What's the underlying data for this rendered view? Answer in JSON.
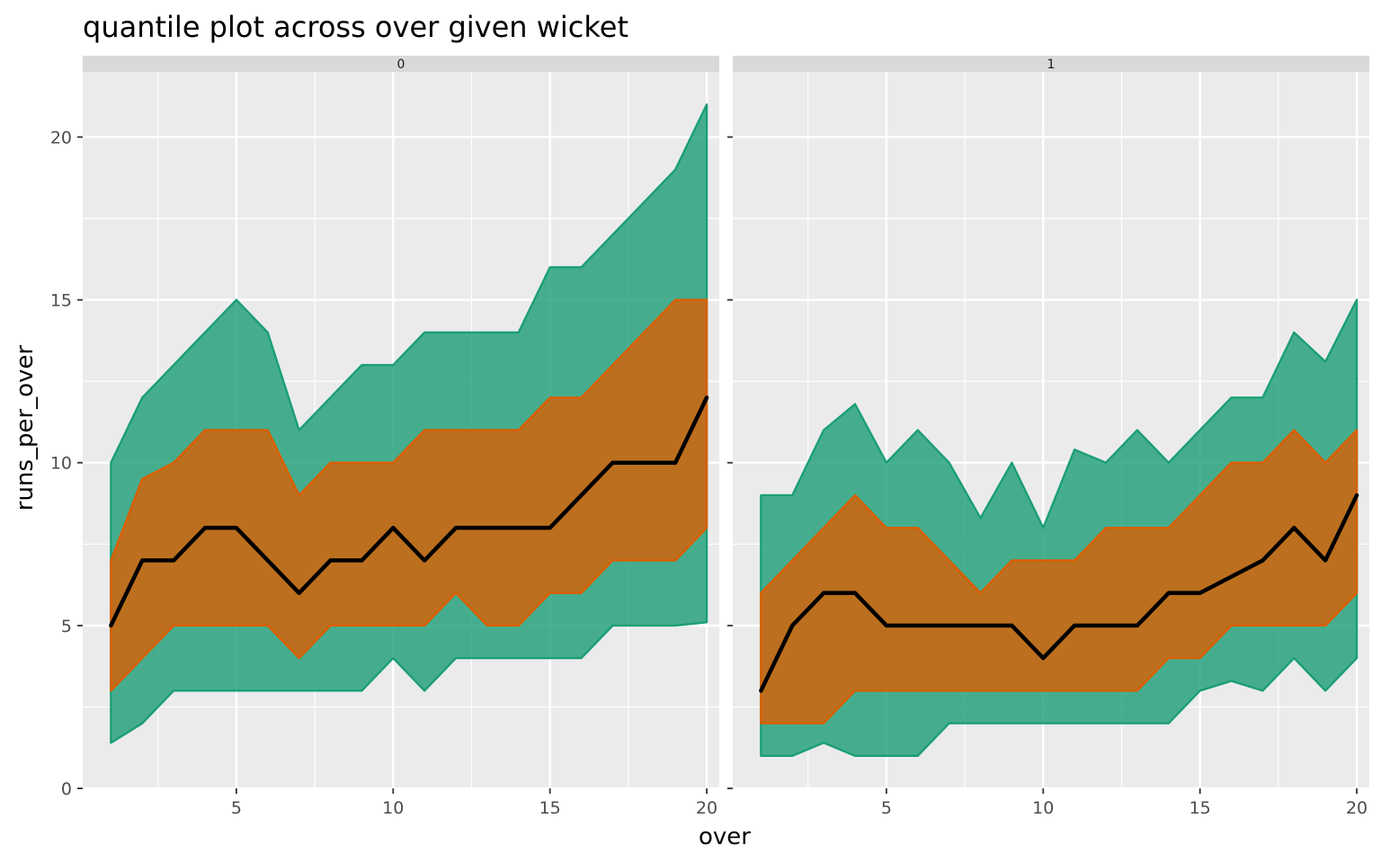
{
  "chart_data": {
    "type": "area",
    "title": "quantile plot across over given wicket",
    "xlabel": "over",
    "ylabel": "runs_per_over",
    "xlim": [
      0.1,
      20.4
    ],
    "ylim": [
      0,
      22
    ],
    "x_ticks": [
      5,
      10,
      15,
      20
    ],
    "y_ticks": [
      0,
      5,
      10,
      15,
      20
    ],
    "grid": true,
    "colors": {
      "outer_band": "#1b9e77",
      "inner_band": "#d95f02",
      "median_line": "#000000",
      "panel_bg": "#ebebeb",
      "strip_bg": "#d9d9d9"
    },
    "facets": [
      {
        "label": "0",
        "x": [
          1,
          2,
          3,
          4,
          5,
          6,
          7,
          8,
          9,
          10,
          11,
          12,
          13,
          14,
          15,
          16,
          17,
          18,
          19,
          20
        ],
        "series": [
          {
            "role": "outer_lower",
            "values": [
              1.4,
              2,
              3,
              3,
              3,
              3,
              3,
              3,
              3,
              4,
              3,
              4,
              4,
              4,
              4,
              4,
              5,
              5,
              5,
              5.1
            ]
          },
          {
            "role": "outer_upper",
            "values": [
              10,
              12,
              13,
              14,
              15,
              14,
              11,
              12,
              13,
              13,
              14,
              14,
              14,
              14,
              16,
              16,
              17,
              18,
              19,
              21
            ]
          },
          {
            "role": "inner_lower",
            "values": [
              3,
              4,
              5,
              5,
              5,
              5,
              4,
              5,
              5,
              5,
              5,
              6,
              5,
              5,
              6,
              6,
              7,
              7,
              7,
              8
            ]
          },
          {
            "role": "inner_upper",
            "values": [
              7,
              9.5,
              10,
              11,
              11,
              11,
              9,
              10,
              10,
              10,
              11,
              11,
              11,
              11,
              12,
              12,
              13,
              14,
              15,
              15
            ]
          },
          {
            "role": "median",
            "values": [
              5,
              7,
              7,
              8,
              8,
              7,
              6,
              7,
              7,
              8,
              7,
              8,
              8,
              8,
              8,
              9,
              10,
              10,
              10,
              12
            ]
          }
        ]
      },
      {
        "label": "1",
        "x": [
          1,
          2,
          3,
          4,
          5,
          6,
          7,
          8,
          9,
          10,
          11,
          12,
          13,
          14,
          15,
          16,
          17,
          18,
          19,
          20
        ],
        "series": [
          {
            "role": "outer_lower",
            "values": [
              1,
              1,
              1.4,
              1,
              1,
              1,
              2,
              2,
              2,
              2,
              2,
              2,
              2,
              2,
              3,
              3.3,
              3,
              4,
              3,
              4
            ]
          },
          {
            "role": "outer_upper",
            "values": [
              9,
              9,
              11,
              11.8,
              10,
              11,
              10,
              8.3,
              10,
              8,
              10.4,
              10,
              11,
              10,
              11,
              12,
              12,
              14,
              13.1,
              15
            ]
          },
          {
            "role": "inner_lower",
            "values": [
              2,
              2,
              2,
              3,
              3,
              3,
              3,
              3,
              3,
              3,
              3,
              3,
              3,
              4,
              4,
              5,
              5,
              5,
              5,
              6
            ]
          },
          {
            "role": "inner_upper",
            "values": [
              6,
              7,
              8,
              9,
              8,
              8,
              7,
              6,
              7,
              7,
              7,
              8,
              8,
              8,
              9,
              10,
              10,
              11,
              10,
              11
            ]
          },
          {
            "role": "median",
            "values": [
              3,
              5,
              6,
              6,
              5,
              5,
              5,
              5,
              5,
              4,
              5,
              5,
              5,
              6,
              6,
              6.5,
              7,
              8,
              7,
              9
            ]
          }
        ]
      }
    ]
  }
}
